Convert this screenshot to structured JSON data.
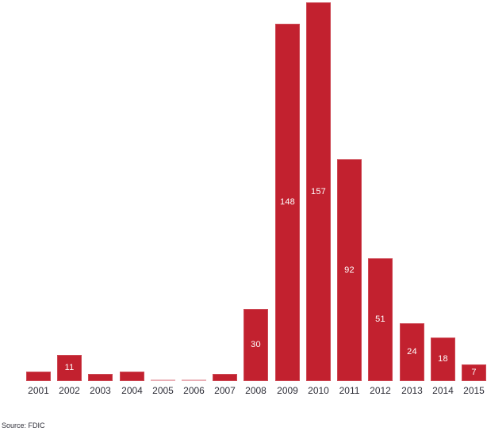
{
  "source_note": "Source: FDIC",
  "colors": {
    "bar": "#c2212f",
    "zero_bar": "#e9aeb5",
    "value_label": "#ffffff",
    "axis_label": "#2e2e38"
  },
  "chart_data": {
    "type": "bar",
    "title": "",
    "xlabel": "",
    "ylabel": "",
    "categories": [
      "2001",
      "2002",
      "2003",
      "2004",
      "2005",
      "2006",
      "2007",
      "2008",
      "2009",
      "2010",
      "2011",
      "2012",
      "2013",
      "2014",
      "2015"
    ],
    "values": [
      4,
      11,
      3,
      4,
      0,
      0,
      3,
      30,
      148,
      157,
      92,
      51,
      24,
      18,
      7
    ],
    "data_labels": [
      "",
      "11",
      "",
      "",
      "",
      "",
      "",
      "30",
      "148",
      "157",
      "92",
      "51",
      "24",
      "18",
      "7"
    ],
    "ylim": [
      0,
      157
    ],
    "grid": false,
    "legend": null,
    "bar_color": "#c2212f",
    "zero_bar_color": "#e9aeb5",
    "value_label_position": "center-inside",
    "value_label_color": "#ffffff"
  }
}
